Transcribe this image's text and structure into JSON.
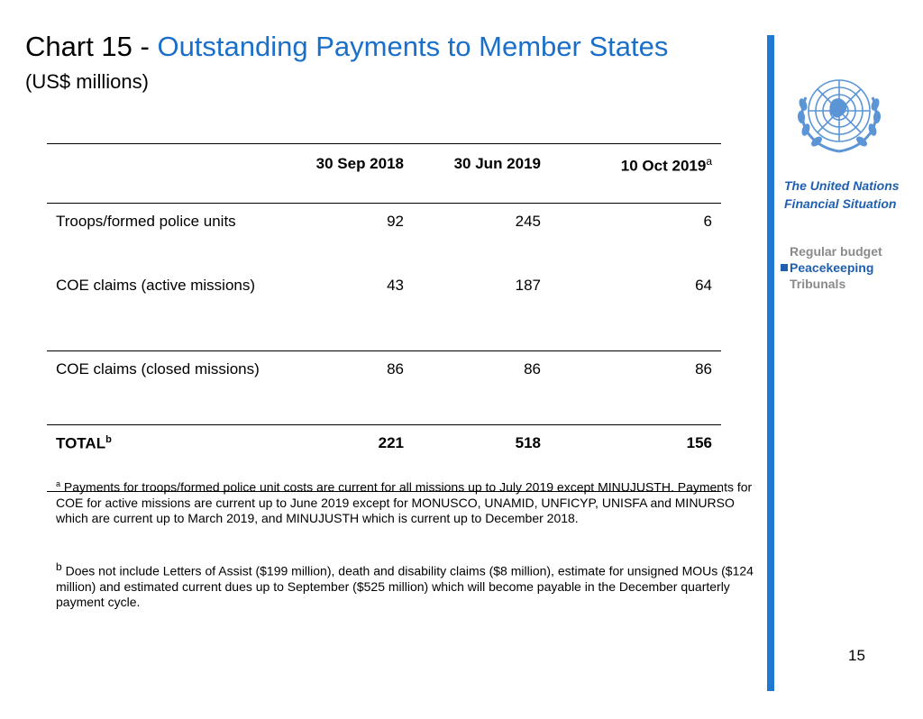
{
  "title": {
    "prefix": "Chart 15 - ",
    "main": "Outstanding Payments to Member States",
    "units": "(US$ millions)"
  },
  "sidebar": {
    "org_line1": "The United Nations",
    "org_line2": "Financial Situation",
    "items": [
      {
        "label": "Regular budget",
        "active": false
      },
      {
        "label": "Peacekeeping",
        "active": true
      },
      {
        "label": "Tribunals",
        "active": false
      }
    ],
    "accent_color": "#1f78d1"
  },
  "table": {
    "headers": [
      "",
      "30 Sep 2018",
      "30 Jun 2019",
      "10 Oct 2019"
    ],
    "header_note": "a",
    "rows": [
      {
        "label": "Troops/formed police units",
        "values": [
          "92",
          "245",
          "6"
        ]
      },
      {
        "label": "COE claims (active missions)",
        "values": [
          "43",
          "187",
          "64"
        ]
      },
      {
        "label": "COE claims (closed missions)",
        "values": [
          "86",
          "86",
          "86"
        ]
      },
      {
        "label": "TOTAL",
        "note": "b",
        "values": [
          "221",
          "518",
          "156"
        ]
      }
    ]
  },
  "footnotes": {
    "a_marker": "a",
    "a_text": "Payments for troops/formed police unit costs are current for all missions up to July 2019 except MINUJUSTH. Payments for COE for active missions are current up to June 2019  except for MONUSCO, UNAMID, UNFICYP, UNISFA and MINURSO which are current up to March 2019, and MINUJUSTH which is current up to December 2018.",
    "b_marker": "b",
    "b_text": "Does not include Letters of Assist  ($199 million), death and disability claims ($8 million), estimate for unsigned MOUs ($124 million) and estimated current dues up to September ($525 million) which will become payable in the December quarterly payment cycle."
  },
  "page_number": "15",
  "emblem_icon": "un-emblem-icon"
}
